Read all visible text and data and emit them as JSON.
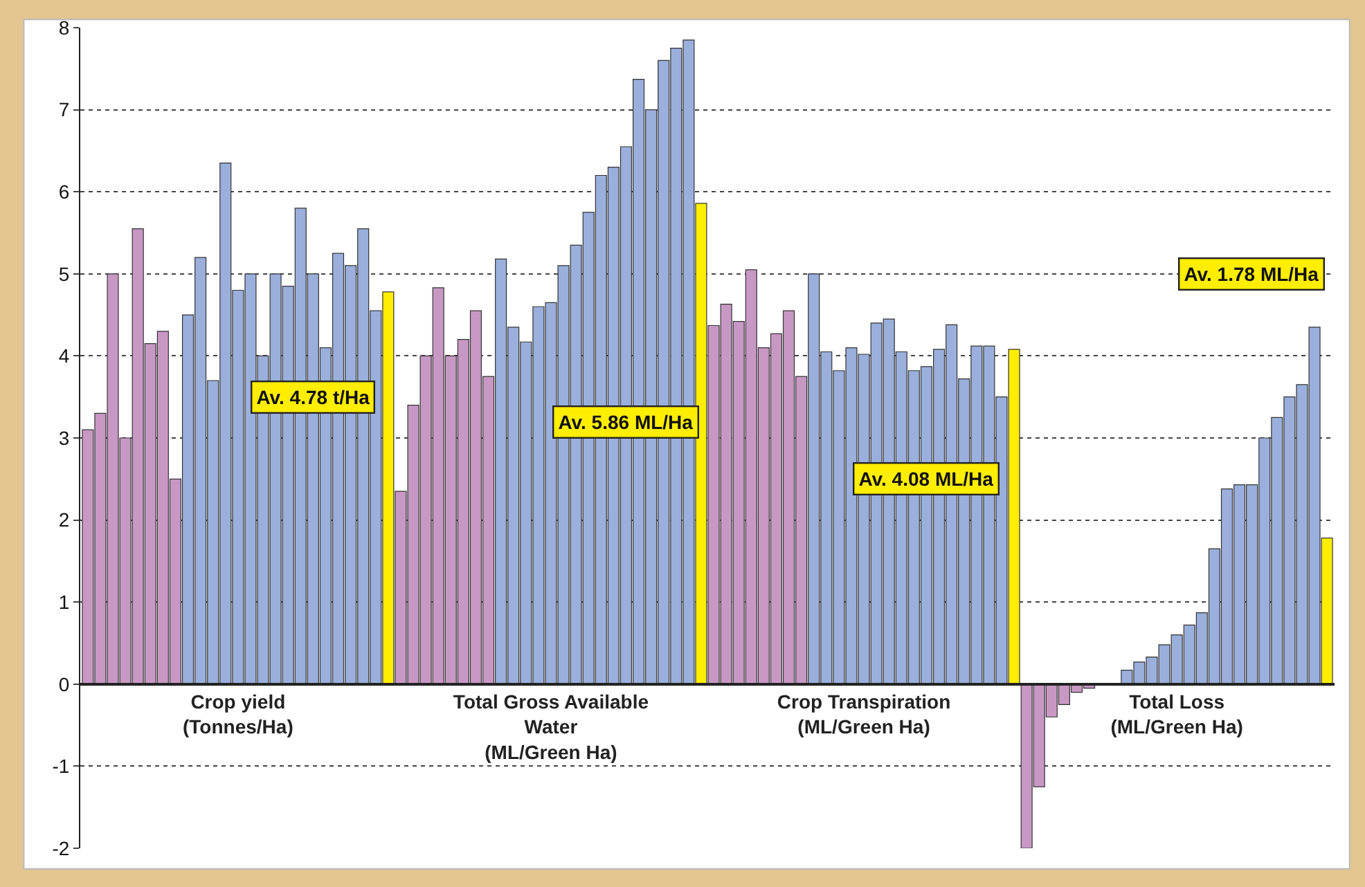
{
  "chart_data": {
    "type": "bar",
    "categories": [
      null,
      null,
      null,
      null,
      null,
      null,
      null,
      null,
      null,
      null,
      null,
      null,
      "Crop yield (Tonnes/Ha)",
      null,
      null,
      null,
      null,
      null,
      null,
      null,
      null,
      null,
      null,
      null,
      null,
      null,
      null,
      null,
      null,
      null,
      null,
      null,
      null,
      null,
      null,
      null,
      null,
      "Total Gross Available Water (ML/Green Ha)",
      null,
      null,
      null,
      null,
      null,
      null,
      null,
      null,
      null,
      null,
      null,
      null,
      null,
      null,
      null,
      null,
      null,
      null,
      null,
      null,
      null,
      null,
      null,
      null,
      "Crop Transpiration (ML/Green Ha)",
      null,
      null,
      null,
      null,
      null,
      null,
      null,
      null,
      null,
      null,
      null,
      null,
      null,
      null,
      null,
      null,
      null,
      null,
      null,
      null,
      null,
      null,
      null,
      null,
      "Total Loss (ML/Green Ha)",
      null,
      null,
      null,
      null,
      null,
      null,
      null,
      null,
      null,
      null,
      null,
      null
    ],
    "series": [
      {
        "color": "#c898c4",
        "values": [
          3.1,
          3.3,
          5.0,
          3.0,
          5.55,
          4.15,
          4.3,
          2.5,
          null,
          null,
          null,
          null,
          null,
          null,
          null,
          null,
          null,
          null,
          null,
          null,
          null,
          null,
          null,
          null,
          null,
          2.35,
          3.4,
          4.0,
          4.83,
          4.0,
          4.2,
          4.55,
          3.75,
          null,
          null,
          null,
          null,
          null,
          null,
          null,
          null,
          null,
          null,
          null,
          null,
          null,
          null,
          null,
          null,
          null,
          4.37,
          4.63,
          4.42,
          5.05,
          4.1,
          4.27,
          4.55,
          3.75,
          null,
          null,
          null,
          null,
          null,
          null,
          null,
          null,
          null,
          null,
          null,
          null,
          null,
          null,
          null,
          null,
          null,
          -2.0,
          -1.25,
          -0.4,
          -0.25,
          -0.1,
          -0.05,
          null,
          null,
          null,
          null,
          null,
          null,
          null,
          null,
          null,
          null,
          null,
          null,
          null,
          null,
          null,
          null,
          null,
          null,
          null
        ]
      },
      {
        "color": "#9aafdb",
        "values": [
          null,
          null,
          null,
          null,
          null,
          null,
          null,
          null,
          4.5,
          5.2,
          3.7,
          6.35,
          4.8,
          5.0,
          4.0,
          5.0,
          4.85,
          5.8,
          5.0,
          4.1,
          5.25,
          5.1,
          5.55,
          4.55,
          null,
          null,
          null,
          null,
          null,
          null,
          null,
          null,
          null,
          5.18,
          4.35,
          4.17,
          4.6,
          4.65,
          5.1,
          5.35,
          5.75,
          6.2,
          6.3,
          6.55,
          7.37,
          7.0,
          7.6,
          7.75,
          7.85,
          null,
          null,
          null,
          null,
          null,
          null,
          null,
          null,
          null,
          5.0,
          4.05,
          3.82,
          4.1,
          4.02,
          4.4,
          4.45,
          4.05,
          3.82,
          3.87,
          4.08,
          4.38,
          3.72,
          4.12,
          4.12,
          3.5,
          null,
          null,
          null,
          null,
          null,
          null,
          null,
          null,
          null,
          0.17,
          0.27,
          0.33,
          0.48,
          0.6,
          0.72,
          0.87,
          1.65,
          2.38,
          2.43,
          2.43,
          3.0,
          3.25,
          3.5,
          3.65,
          4.35,
          null
        ]
      },
      {
        "color": "#ffee00",
        "values": [
          null,
          null,
          null,
          null,
          null,
          null,
          null,
          null,
          null,
          null,
          null,
          null,
          null,
          null,
          null,
          null,
          null,
          null,
          null,
          null,
          null,
          null,
          null,
          null,
          4.78,
          null,
          null,
          null,
          null,
          null,
          null,
          null,
          null,
          null,
          null,
          null,
          null,
          null,
          null,
          null,
          null,
          null,
          null,
          null,
          null,
          null,
          null,
          null,
          null,
          5.86,
          null,
          null,
          null,
          null,
          null,
          null,
          null,
          null,
          null,
          null,
          null,
          null,
          null,
          null,
          null,
          null,
          null,
          null,
          null,
          null,
          null,
          null,
          null,
          null,
          4.08,
          null,
          null,
          null,
          null,
          null,
          null,
          null,
          null,
          null,
          null,
          null,
          null,
          null,
          null,
          null,
          null,
          null,
          null,
          null,
          null,
          null,
          null,
          null,
          null,
          1.78
        ]
      }
    ],
    "annotations": [
      "Av. 4.78 t/Ha",
      "Av. 5.86 ML/Ha",
      "Av. 4.08 ML/Ha",
      "Av. 1.78 ML/Ha"
    ],
    "ylim": [
      -2,
      8
    ],
    "yticks": [
      -2,
      -1,
      0,
      1,
      2,
      3,
      4,
      5,
      6,
      7,
      8
    ],
    "grid": "y",
    "legend": false
  }
}
